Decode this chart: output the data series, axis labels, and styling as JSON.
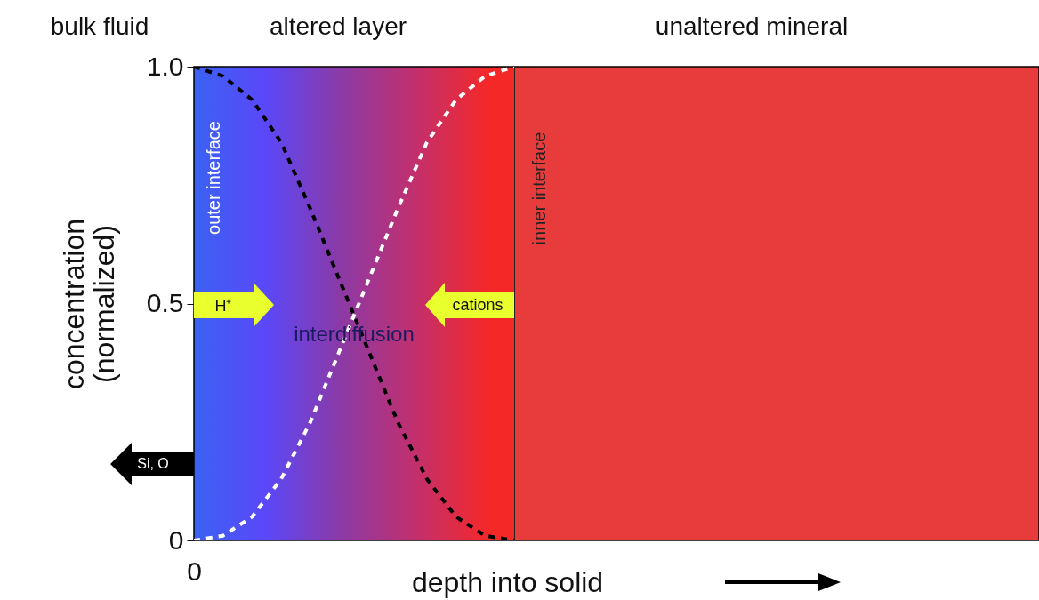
{
  "chart_data": {
    "type": "line",
    "xlabel": "depth into solid",
    "ylabel": "concentration\n(normalized)",
    "categories": [
      "0",
      null,
      null,
      null,
      null,
      null,
      null,
      null,
      null,
      null,
      null,
      null
    ],
    "series": [
      {
        "color": "#000000",
        "values": [
          1.0,
          0.98,
          0.93,
          0.84,
          0.7,
          0.55,
          0.4,
          0.25,
          0.13,
          0.05,
          0.01,
          0.0
        ]
      },
      {
        "color": "#ffffff",
        "values": [
          0.0,
          0.01,
          0.05,
          0.13,
          0.25,
          0.4,
          0.55,
          0.7,
          0.84,
          0.93,
          0.98,
          1.0
        ]
      }
    ],
    "ylim": [
      0,
      1
    ],
    "yticks": [
      {
        "value": 0,
        "label": "0"
      },
      {
        "value": 0.5,
        "label": "0.5"
      },
      {
        "value": 1,
        "label": "1.0"
      }
    ],
    "grid": false,
    "line_style": "dashed",
    "annotations": [
      "bulk fluid",
      "altered layer",
      "unaltered mineral",
      "outer interface",
      "inner interface",
      "H⁺",
      "cations",
      "interdiffusion",
      "Si, O"
    ]
  }
}
